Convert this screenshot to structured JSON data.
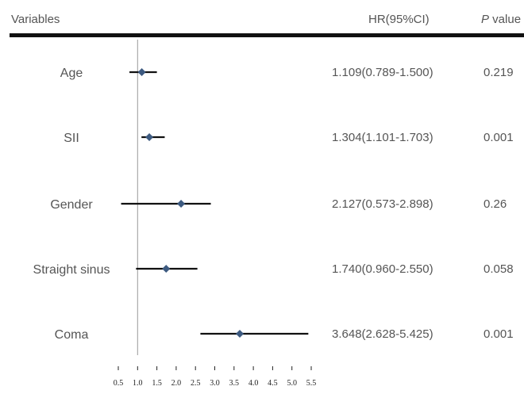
{
  "header": {
    "variables_label": "Variables",
    "hr_label": "HR(95%CI)",
    "p_label_italic": "P",
    "p_label_rest": " value"
  },
  "colors": {
    "marker": "#3d5a80",
    "ci_line": "#111111",
    "ref_line": "#999999",
    "rule": "#111111"
  },
  "chart_data": {
    "type": "forest",
    "title": "",
    "xlabel": "",
    "ylabel": "",
    "reference_line": 1.0,
    "xlim": [
      0.5,
      5.5
    ],
    "x_ticks": [
      "0.5",
      "1.0",
      "1.5",
      "2.0",
      "2.5",
      "3.0",
      "3.5",
      "4.0",
      "4.5",
      "5.0",
      "5.5"
    ],
    "rows": [
      {
        "variable": "Age",
        "hr": 1.109,
        "ci_low": 0.789,
        "ci_high": 1.5,
        "hr_text": "1.109(0.789-1.500)",
        "p_text": "0.219"
      },
      {
        "variable": "SII",
        "hr": 1.304,
        "ci_low": 1.101,
        "ci_high": 1.703,
        "hr_text": "1.304(1.101-1.703)",
        "p_text": "0.001"
      },
      {
        "variable": "Gender",
        "hr": 2.127,
        "ci_low": 0.573,
        "ci_high": 2.898,
        "hr_text": "2.127(0.573-2.898)",
        "p_text": "0.26"
      },
      {
        "variable": "Straight sinus",
        "hr": 1.74,
        "ci_low": 0.96,
        "ci_high": 2.55,
        "hr_text": "1.740(0.960-2.550)",
        "p_text": "0.058"
      },
      {
        "variable": "Coma",
        "hr": 3.648,
        "ci_low": 2.628,
        "ci_high": 5.425,
        "hr_text": "3.648(2.628-5.425)",
        "p_text": "0.001"
      }
    ]
  }
}
